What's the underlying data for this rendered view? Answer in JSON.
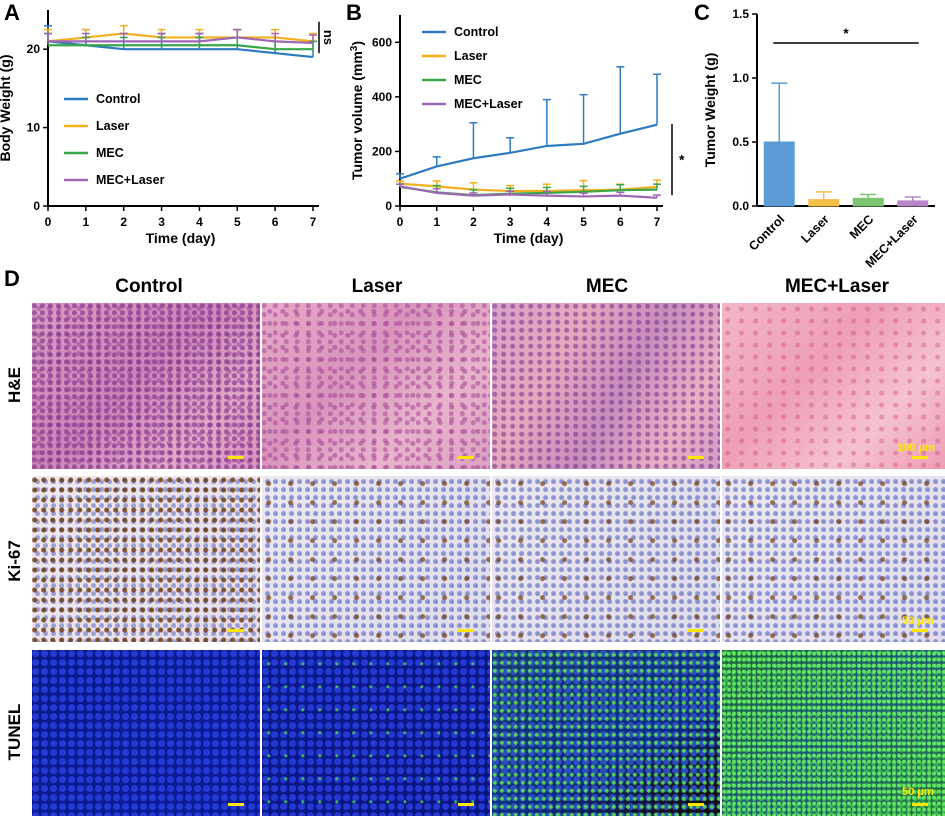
{
  "chart_data": [
    {
      "type": "line",
      "letter": "A",
      "xlabel": "Time (day)",
      "ylabel": "Body Weight (g)",
      "xlim": [
        0,
        7
      ],
      "ylim": [
        0,
        25
      ],
      "xticks": [
        "0",
        "1",
        "2",
        "3",
        "4",
        "5",
        "6",
        "7"
      ],
      "yticks": [
        "0",
        "10",
        "20"
      ],
      "x": [
        0,
        1,
        2,
        3,
        4,
        5,
        6,
        7
      ],
      "series": [
        {
          "name": "Control",
          "color": "#2f7bbf",
          "values": [
            21.0,
            20.5,
            20.0,
            20.0,
            20.0,
            20.0,
            19.5,
            19.0
          ],
          "err": [
            2.0,
            2.0,
            2.0,
            2.0,
            2.0,
            2.5,
            2.0,
            2.0
          ]
        },
        {
          "name": "Laser",
          "color": "#f2b01e",
          "values": [
            21.0,
            21.5,
            22.0,
            21.5,
            21.5,
            21.5,
            21.5,
            21.0
          ],
          "err": [
            1.5,
            1.0,
            1.0,
            1.0,
            1.0,
            1.0,
            1.0,
            1.0
          ]
        },
        {
          "name": "MEC",
          "color": "#3aa64a",
          "values": [
            20.5,
            20.5,
            20.5,
            20.5,
            20.5,
            20.5,
            20.0,
            20.0
          ],
          "err": [
            1.5,
            1.0,
            1.0,
            1.0,
            1.0,
            1.0,
            1.0,
            1.0
          ]
        },
        {
          "name": "MEC+Laser",
          "color": "#a066b6",
          "values": [
            21.0,
            21.0,
            21.0,
            21.0,
            21.0,
            21.5,
            21.0,
            20.8
          ],
          "err": [
            1.0,
            1.0,
            1.0,
            1.0,
            1.0,
            1.0,
            1.0,
            1.0
          ]
        }
      ],
      "annotation": "ns"
    },
    {
      "type": "line",
      "letter": "B",
      "xlabel": "Time (day)",
      "ylabel": "Tumor volume (mm",
      "ylabel_sup": "3",
      "ylabel_tail": ")",
      "xlim": [
        0,
        7
      ],
      "ylim": [
        0,
        700
      ],
      "xticks": [
        "0",
        "1",
        "2",
        "3",
        "4",
        "5",
        "6",
        "7"
      ],
      "yticks": [
        "0",
        "200",
        "400",
        "600"
      ],
      "x": [
        0,
        1,
        2,
        3,
        4,
        5,
        6,
        7
      ],
      "series": [
        {
          "name": "Control",
          "color": "#2f7bbf",
          "values": [
            100,
            145,
            175,
            195,
            220,
            228,
            265,
            298
          ],
          "err": [
            18,
            35,
            130,
            55,
            170,
            180,
            245,
            185
          ]
        },
        {
          "name": "Laser",
          "color": "#f2b01e",
          "values": [
            82,
            72,
            60,
            55,
            55,
            58,
            60,
            70
          ],
          "err": [
            10,
            20,
            25,
            20,
            25,
            35,
            20,
            25
          ]
        },
        {
          "name": "MEC",
          "color": "#3aa64a",
          "values": [
            70,
            50,
            40,
            45,
            48,
            52,
            58,
            60
          ],
          "err": [
            10,
            25,
            20,
            20,
            20,
            20,
            20,
            20
          ]
        },
        {
          "name": "MEC+Laser",
          "color": "#a066b6",
          "values": [
            72,
            48,
            38,
            42,
            38,
            35,
            38,
            30
          ],
          "err": [
            8,
            15,
            10,
            12,
            15,
            12,
            12,
            10
          ]
        }
      ],
      "annotation": "*"
    },
    {
      "type": "bar",
      "letter": "C",
      "ylabel": "Tumor Weight (g)",
      "ylim": [
        0,
        1.5
      ],
      "yticks": [
        "0.0",
        "0.5",
        "1.0",
        "1.5"
      ],
      "categories": [
        "Control",
        "Laser",
        "MEC",
        "MEC+Laser"
      ],
      "values": [
        0.5,
        0.05,
        0.06,
        0.04
      ],
      "err": [
        0.46,
        0.06,
        0.03,
        0.03
      ],
      "colors": [
        "#5b9bd5",
        "#f5c04a",
        "#7cc46e",
        "#b886c8"
      ],
      "annotation": "*"
    }
  ],
  "panel_d": {
    "letter": "D",
    "columns": [
      "Control",
      "Laser",
      "MEC",
      "MEC+Laser"
    ],
    "rows": [
      "H&E",
      "Ki-67",
      "TUNEL"
    ],
    "scale_labels": [
      "100 μm",
      "50 μm",
      "50 μm"
    ]
  }
}
